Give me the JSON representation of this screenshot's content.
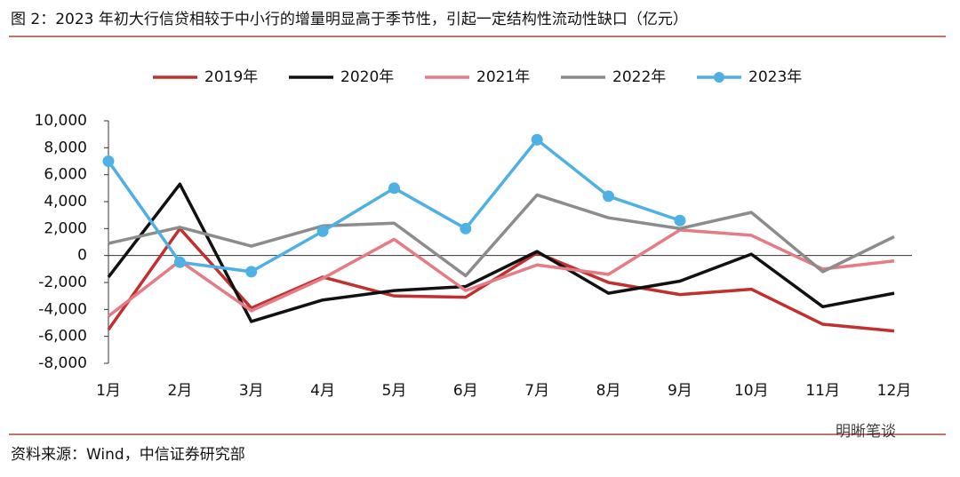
{
  "chart_data": {
    "type": "line",
    "title": "图 2：2023 年初大行信贷相较于中小行的增量明显高于季节性，引起一定结构性流动性缺口（亿元）",
    "source": "资料来源：Wind，中信证券研究部",
    "watermark": "明晰笔谈",
    "categories": [
      "1月",
      "2月",
      "3月",
      "4月",
      "5月",
      "6月",
      "7月",
      "8月",
      "9月",
      "10月",
      "11月",
      "12月"
    ],
    "series": [
      {
        "name": "2019年",
        "color": "#c0302e",
        "markers": false,
        "values": [
          -5500,
          2000,
          -3900,
          -1600,
          -3000,
          -3100,
          200,
          -2000,
          -2900,
          -2500,
          -5100,
          -5600
        ]
      },
      {
        "name": "2020年",
        "color": "#111111",
        "markers": false,
        "values": [
          -1600,
          5300,
          -4900,
          -3300,
          -2600,
          -2300,
          300,
          -2800,
          -1900,
          100,
          -3800,
          -2800
        ]
      },
      {
        "name": "2021年",
        "color": "#e57b84",
        "markers": false,
        "values": [
          -4500,
          -400,
          -4100,
          -1700,
          1200,
          -2600,
          -700,
          -1400,
          1900,
          1500,
          -1000,
          -400
        ]
      },
      {
        "name": "2022年",
        "color": "#8c8c8c",
        "markers": false,
        "values": [
          900,
          2100,
          700,
          2200,
          2400,
          -1500,
          4500,
          2800,
          2000,
          3200,
          -1200,
          1400
        ]
      },
      {
        "name": "2023年",
        "color": "#4fb0e3",
        "markers": true,
        "values": [
          7000,
          -500,
          -1200,
          1800,
          5000,
          2000,
          8600,
          4400,
          2600,
          null,
          null,
          null
        ]
      }
    ],
    "ylim": [
      -8000,
      10000
    ],
    "yticks": [
      {
        "value": -8000,
        "label": "-8,000"
      },
      {
        "value": -6000,
        "label": "-6,000"
      },
      {
        "value": -4000,
        "label": "-4,000"
      },
      {
        "value": -2000,
        "label": "-2,000"
      },
      0,
      {
        "value": 2000,
        "label": "2,000"
      },
      {
        "value": 4000,
        "label": "4,000"
      },
      {
        "value": 6000,
        "label": "6,000"
      },
      {
        "value": 8000,
        "label": "8,000"
      },
      {
        "value": 10000,
        "label": "10,000"
      }
    ],
    "grid": false,
    "legend": "top"
  }
}
